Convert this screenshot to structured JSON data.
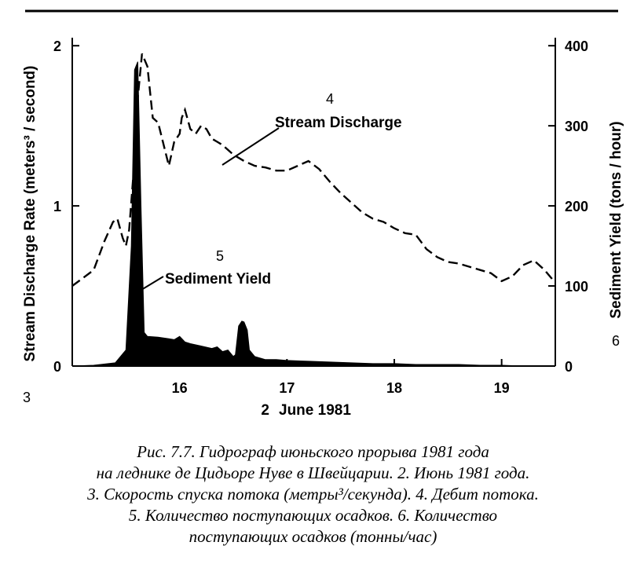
{
  "chart_data": {
    "type": "area",
    "x_tick_labels": [
      "16",
      "17",
      "18",
      "19"
    ],
    "x_ticks": [
      16,
      17,
      18,
      19
    ],
    "xlim": [
      15,
      19.5
    ],
    "xlabel": "2 June 1981",
    "xlabel_number": "2",
    "xlabel_rest": "June 1981",
    "y_left_ticks": [
      0,
      1,
      2
    ],
    "y_left_tick_labels": [
      "0",
      "1",
      "2"
    ],
    "ylim_left": [
      0,
      2.05
    ],
    "ylabel_left": "Stream Discharge Rate (meters³ / second)",
    "ylabel_left_number": "3",
    "y_right_ticks": [
      0,
      100,
      200,
      300,
      400
    ],
    "y_right_tick_labels": [
      "0",
      "100",
      "200",
      "300",
      "400"
    ],
    "ylim_right": [
      0,
      410
    ],
    "ylabel_right": "Sediment Yield (tons / hour)",
    "ylabel_right_number": "6",
    "grid": false,
    "series": [
      {
        "name": "Stream Discharge",
        "number": "4",
        "axis": "left",
        "style": "dashed",
        "x": [
          15.0,
          15.1,
          15.2,
          15.3,
          15.38,
          15.42,
          15.47,
          15.5,
          15.53,
          15.57,
          15.6,
          15.65,
          15.7,
          15.75,
          15.8,
          15.9,
          15.95,
          16.0,
          16.02,
          16.05,
          16.1,
          16.15,
          16.2,
          16.25,
          16.3,
          16.35,
          16.4,
          16.5,
          16.6,
          16.7,
          16.8,
          16.9,
          17.0,
          17.1,
          17.2,
          17.3,
          17.4,
          17.5,
          17.6,
          17.7,
          17.8,
          17.9,
          18.0,
          18.1,
          18.2,
          18.3,
          18.4,
          18.5,
          18.6,
          18.7,
          18.8,
          18.9,
          19.0,
          19.1,
          19.2,
          19.3,
          19.4,
          19.5
        ],
        "values": [
          0.5,
          0.55,
          0.6,
          0.78,
          0.9,
          0.92,
          0.8,
          0.75,
          0.85,
          1.2,
          1.6,
          1.95,
          1.87,
          1.55,
          1.52,
          1.25,
          1.4,
          1.45,
          1.55,
          1.6,
          1.48,
          1.45,
          1.5,
          1.48,
          1.42,
          1.4,
          1.38,
          1.32,
          1.28,
          1.25,
          1.24,
          1.22,
          1.22,
          1.25,
          1.28,
          1.23,
          1.15,
          1.08,
          1.02,
          0.96,
          0.92,
          0.9,
          0.86,
          0.83,
          0.82,
          0.73,
          0.68,
          0.65,
          0.64,
          0.62,
          0.6,
          0.58,
          0.53,
          0.56,
          0.63,
          0.66,
          0.6,
          0.52
        ]
      },
      {
        "name": "Sediment Yield",
        "number": "5",
        "axis": "right",
        "style": "filled",
        "x": [
          15.0,
          15.2,
          15.4,
          15.5,
          15.55,
          15.58,
          15.61,
          15.64,
          15.67,
          15.7,
          15.8,
          15.9,
          15.95,
          16.0,
          16.05,
          16.1,
          16.2,
          16.3,
          16.35,
          16.4,
          16.45,
          16.5,
          16.52,
          16.55,
          16.58,
          16.6,
          16.63,
          16.65,
          16.7,
          16.8,
          16.9,
          17.0,
          17.2,
          17.4,
          17.6,
          17.8,
          18.0,
          18.2,
          18.4,
          18.6,
          18.8,
          19.0,
          19.2,
          19.4,
          19.5
        ],
        "values": [
          0,
          1,
          4,
          20,
          150,
          370,
          380,
          200,
          42,
          37,
          36,
          34,
          33,
          37,
          30,
          28,
          25,
          22,
          24,
          18,
          20,
          12,
          14,
          50,
          56,
          55,
          45,
          20,
          12,
          8,
          8,
          7,
          6,
          5,
          4,
          3,
          3,
          2,
          2,
          2,
          1,
          1,
          0,
          0,
          0
        ]
      }
    ]
  },
  "caption": {
    "lines": [
      "Рис. 7.7. Гидрограф июньского прорыва 1981 года",
      "на леднике де Цидьоре Нуве в Швейцарии. 2. Июнь 1981 года.",
      "3. Скорость спуска потока (метры³/секунда). 4. Дебит потока.",
      "5. Количество поступающих осадков. 6. Количество",
      "поступающих осадков (тонны/час)"
    ]
  }
}
